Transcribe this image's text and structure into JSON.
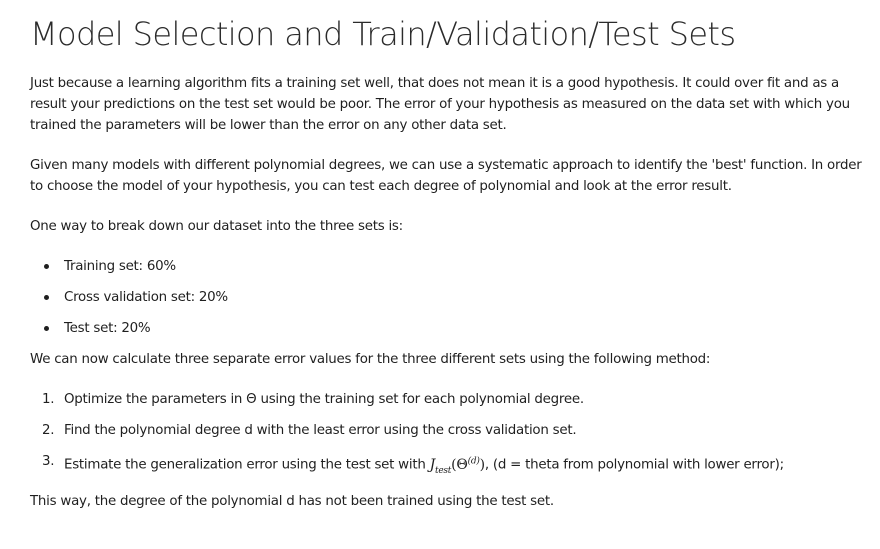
{
  "title": "Model Selection and Train/Validation/Test Sets",
  "paragraphs": {
    "intro": "Just because a learning algorithm fits a training set well, that does not mean it is a good hypothesis. It could over fit and as a result your predictions on the test set would be poor. The error of your hypothesis as measured on the data set with which you trained the parameters will be lower than the error on any other data set.",
    "models": "Given many models with different polynomial degrees, we can use a systematic approach to identify the 'best' function. In order to choose the model of your hypothesis, you can test each degree of polynomial and look at the error result.",
    "breakdown": "One way to break down our dataset into the three sets is:",
    "method": "We can now calculate three separate error values for the three different sets using the following method:",
    "conclusion": "This way, the degree of the polynomial d has not been trained using the test set."
  },
  "split_list": [
    "Training set: 60%",
    "Cross validation set: 20%",
    "Test set: 20%"
  ],
  "steps": [
    {
      "num": "1.",
      "text": "Optimize the parameters in Θ using the training set for each polynomial degree."
    },
    {
      "num": "2.",
      "text": "Find the polynomial degree d with the least error using the cross validation set."
    },
    {
      "num": "3.",
      "text_before": "Estimate the generalization error using the test set with ",
      "math_J": "J",
      "math_sub": "test",
      "math_open": "(Θ",
      "math_sup": "(d)",
      "math_close": ")",
      "text_after": ", (d = theta from polynomial with lower error);"
    }
  ]
}
